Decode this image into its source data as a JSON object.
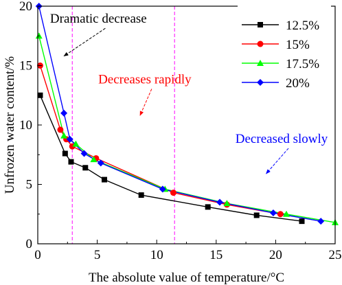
{
  "chart_data": {
    "type": "line",
    "xlabel": "The absolute value of temperature/°C",
    "ylabel": "Unfrozen water content/%",
    "xlim": [
      0,
      25
    ],
    "ylim": [
      0,
      20
    ],
    "xticks": [
      0,
      5,
      10,
      15,
      20,
      25
    ],
    "yticks": [
      0,
      5,
      10,
      15,
      20
    ],
    "grid": false,
    "legend_position": "top-right",
    "series": [
      {
        "name": "12.5%",
        "color": "#000000",
        "marker": "square",
        "points": [
          [
            0.2,
            12.5
          ],
          [
            2.3,
            7.6
          ],
          [
            2.8,
            6.9
          ],
          [
            4.0,
            6.4
          ],
          [
            5.6,
            5.4
          ],
          [
            8.7,
            4.1
          ],
          [
            14.3,
            3.1
          ],
          [
            18.4,
            2.4
          ],
          [
            22.2,
            1.9
          ]
        ]
      },
      {
        "name": "15%",
        "color": "#ff0000",
        "marker": "circle",
        "points": [
          [
            0.2,
            15.0
          ],
          [
            1.9,
            9.6
          ],
          [
            2.4,
            8.8
          ],
          [
            2.9,
            8.2
          ],
          [
            4.9,
            7.2
          ],
          [
            11.4,
            4.3
          ],
          [
            15.9,
            3.3
          ],
          [
            20.4,
            2.5
          ]
        ]
      },
      {
        "name": "17.5%",
        "color": "#00ff00",
        "marker": "triangle",
        "points": [
          [
            0.1,
            17.5
          ],
          [
            2.2,
            9.1
          ],
          [
            3.2,
            8.4
          ],
          [
            4.7,
            7.1
          ],
          [
            10.7,
            4.6
          ],
          [
            15.9,
            3.4
          ],
          [
            20.9,
            2.5
          ],
          [
            25.0,
            1.8
          ]
        ]
      },
      {
        "name": "20%",
        "color": "#0000ff",
        "marker": "diamond",
        "points": [
          [
            0.1,
            20.0
          ],
          [
            2.2,
            11.0
          ],
          [
            2.7,
            8.8
          ],
          [
            3.9,
            7.6
          ],
          [
            5.3,
            6.8
          ],
          [
            10.5,
            4.6
          ],
          [
            15.3,
            3.5
          ],
          [
            19.8,
            2.6
          ],
          [
            23.8,
            1.9
          ]
        ]
      }
    ],
    "vlines": [
      {
        "x": 2.9,
        "color": "#ff00ff"
      },
      {
        "x": 11.5,
        "color": "#ff00ff"
      }
    ],
    "annotations": [
      {
        "text": "Dramatic decrease",
        "color": "#000000",
        "x": 5.1,
        "y": 18.6,
        "arrow_to": [
          2.2,
          15.8
        ]
      },
      {
        "text": "Decreases rapidly",
        "color": "#ff0000",
        "x": 9.0,
        "y": 13.5,
        "arrow_to": [
          8.6,
          10.8
        ]
      },
      {
        "text": "Decreased slowly",
        "color": "#0000ff",
        "x": 20.5,
        "y": 8.5,
        "arrow_to": [
          19.2,
          5.9
        ]
      }
    ]
  }
}
